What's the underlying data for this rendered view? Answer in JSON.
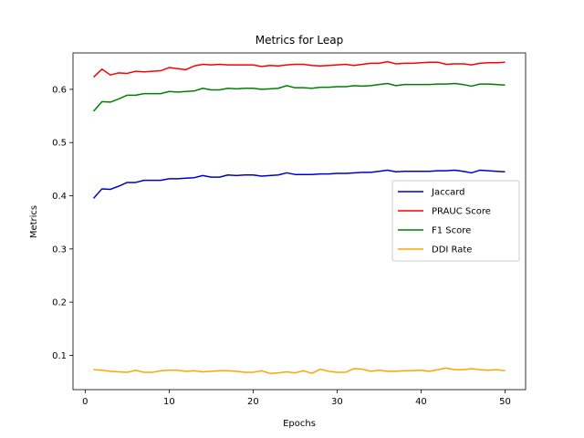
{
  "chart_data": {
    "type": "line",
    "title": "Metrics for Leap",
    "xlabel": "Epochs",
    "ylabel": "Metrics",
    "xlim": [
      -1.45,
      52.45
    ],
    "ylim": [
      0.0355,
      0.6685
    ],
    "xticks": [
      0,
      10,
      20,
      30,
      40,
      50
    ],
    "yticks": [
      0.1,
      0.2,
      0.3,
      0.4,
      0.5,
      0.6
    ],
    "ytick_labels": [
      "0.1",
      "0.2",
      "0.3",
      "0.4",
      "0.5",
      "0.6"
    ],
    "grid": false,
    "legend_position": "center-right",
    "x": [
      1,
      2,
      3,
      4,
      5,
      6,
      7,
      8,
      9,
      10,
      11,
      12,
      13,
      14,
      15,
      16,
      17,
      18,
      19,
      20,
      21,
      22,
      23,
      24,
      25,
      26,
      27,
      28,
      29,
      30,
      31,
      32,
      33,
      34,
      35,
      36,
      37,
      38,
      39,
      40,
      41,
      42,
      43,
      44,
      45,
      46,
      47,
      48,
      49,
      50
    ],
    "series": [
      {
        "name": "Jaccard",
        "color": "#0000cc",
        "values": [
          0.395,
          0.413,
          0.412,
          0.418,
          0.425,
          0.425,
          0.429,
          0.429,
          0.429,
          0.432,
          0.432,
          0.433,
          0.434,
          0.438,
          0.435,
          0.435,
          0.439,
          0.438,
          0.439,
          0.439,
          0.437,
          0.438,
          0.439,
          0.443,
          0.44,
          0.44,
          0.44,
          0.441,
          0.441,
          0.442,
          0.442,
          0.443,
          0.444,
          0.444,
          0.446,
          0.448,
          0.445,
          0.446,
          0.446,
          0.446,
          0.446,
          0.447,
          0.447,
          0.448,
          0.446,
          0.443,
          0.448,
          0.447,
          0.446,
          0.445
        ]
      },
      {
        "name": "PRAUC Score",
        "color": "#ff0000",
        "values": [
          0.623,
          0.638,
          0.627,
          0.631,
          0.63,
          0.634,
          0.633,
          0.634,
          0.635,
          0.641,
          0.639,
          0.637,
          0.644,
          0.647,
          0.646,
          0.647,
          0.646,
          0.646,
          0.646,
          0.646,
          0.643,
          0.645,
          0.644,
          0.646,
          0.647,
          0.647,
          0.645,
          0.644,
          0.645,
          0.646,
          0.647,
          0.645,
          0.647,
          0.649,
          0.649,
          0.652,
          0.648,
          0.649,
          0.649,
          0.65,
          0.651,
          0.651,
          0.647,
          0.648,
          0.648,
          0.646,
          0.649,
          0.65,
          0.65,
          0.651
        ]
      },
      {
        "name": "F1 Score",
        "color": "#008000",
        "values": [
          0.559,
          0.577,
          0.576,
          0.582,
          0.589,
          0.589,
          0.592,
          0.592,
          0.592,
          0.596,
          0.595,
          0.596,
          0.597,
          0.602,
          0.599,
          0.599,
          0.602,
          0.601,
          0.602,
          0.602,
          0.6,
          0.601,
          0.602,
          0.607,
          0.603,
          0.603,
          0.602,
          0.604,
          0.604,
          0.605,
          0.605,
          0.607,
          0.606,
          0.607,
          0.609,
          0.611,
          0.607,
          0.609,
          0.609,
          0.609,
          0.609,
          0.61,
          0.61,
          0.611,
          0.609,
          0.606,
          0.61,
          0.61,
          0.609,
          0.608
        ]
      },
      {
        "name": "DDI Rate",
        "color": "#ffa500",
        "values": [
          0.073,
          0.072,
          0.07,
          0.069,
          0.068,
          0.072,
          0.068,
          0.068,
          0.071,
          0.072,
          0.072,
          0.07,
          0.071,
          0.069,
          0.07,
          0.071,
          0.071,
          0.07,
          0.068,
          0.068,
          0.071,
          0.066,
          0.067,
          0.069,
          0.067,
          0.071,
          0.066,
          0.074,
          0.07,
          0.068,
          0.068,
          0.075,
          0.074,
          0.07,
          0.072,
          0.07,
          0.07,
          0.071,
          0.071,
          0.072,
          0.07,
          0.073,
          0.076,
          0.073,
          0.073,
          0.075,
          0.073,
          0.072,
          0.073,
          0.071
        ]
      }
    ]
  }
}
